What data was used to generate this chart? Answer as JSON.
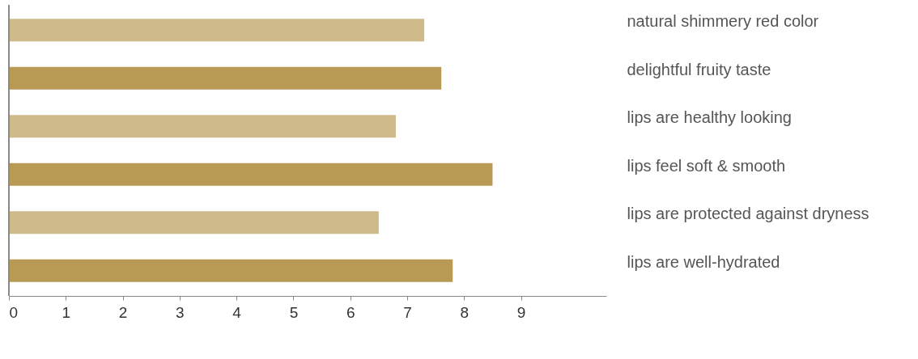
{
  "chart_data": {
    "type": "bar",
    "orientation": "horizontal",
    "categories": [
      "natural shimmery red color",
      "delightful fruity taste",
      "lips are healthy looking",
      "lips feel soft & smooth",
      "lips are protected against dryness",
      "lips are well-hydrated"
    ],
    "values": [
      7.3,
      7.6,
      6.8,
      8.5,
      6.5,
      7.8
    ],
    "colors": [
      "#cfba8b",
      "#b89a55",
      "#cfba8b",
      "#b89a55",
      "#cfba8b",
      "#b89a55"
    ],
    "xlim": [
      0,
      10.5
    ],
    "xticks": [
      0,
      1,
      2,
      3,
      4,
      5,
      6,
      7,
      8,
      9
    ],
    "grid": false
  }
}
